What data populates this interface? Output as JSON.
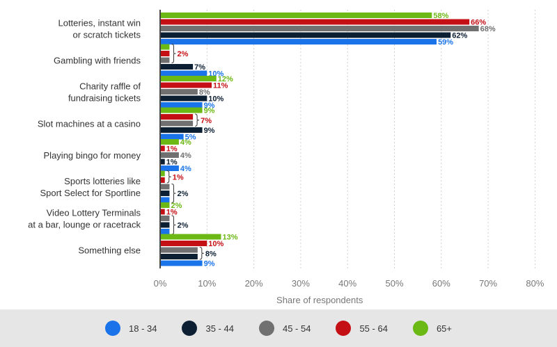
{
  "chart_data": {
    "type": "bar",
    "orientation": "horizontal",
    "categories": [
      [
        "Lotteries, instant win",
        "or scratch tickets"
      ],
      [
        "Gambling with friends"
      ],
      [
        "Charity raffle of",
        "fundraising tickets"
      ],
      [
        "Slot machines at a casino"
      ],
      [
        "Playing bingo for money"
      ],
      [
        "Sports lotteries like",
        "Sport Select for Sportline"
      ],
      [
        "Video Lottery Terminals",
        "at a bar, lounge or racetrack"
      ],
      [
        "Something else"
      ]
    ],
    "series_order_top_to_bottom": [
      "65+",
      "55 - 64",
      "45 - 54",
      "35 - 44",
      "18 - 34"
    ],
    "series": [
      {
        "name": "18 - 34",
        "color": "#1a73e8",
        "values": [
          59,
          10,
          9,
          5,
          4,
          2,
          2,
          9
        ]
      },
      {
        "name": "35 - 44",
        "color": "#0d1f33",
        "values": [
          62,
          7,
          10,
          9,
          1,
          2,
          2,
          8
        ]
      },
      {
        "name": "45 - 54",
        "color": "#707070",
        "values": [
          68,
          2,
          8,
          7,
          4,
          2,
          2,
          8
        ]
      },
      {
        "name": "55 - 64",
        "color": "#c40f15",
        "values": [
          66,
          2,
          11,
          7,
          1,
          1,
          1,
          10
        ]
      },
      {
        "name": "65+",
        "color": "#6cb814",
        "values": [
          58,
          2,
          12,
          9,
          4,
          1,
          2,
          13
        ]
      }
    ],
    "data_labels": [
      [
        {
          "series": "65+",
          "text": "58%"
        },
        {
          "series": "55 - 64",
          "text": "66%"
        },
        {
          "series": "45 - 54",
          "text": "68%"
        },
        {
          "series": "35 - 44",
          "text": "62%"
        },
        {
          "series": "18 - 34",
          "text": "59%"
        }
      ],
      [
        {
          "series": "55 - 64",
          "text": "2%",
          "bracket": [
            "65+",
            "45 - 54"
          ]
        },
        {
          "series": "35 - 44",
          "text": "7%"
        },
        {
          "series": "18 - 34",
          "text": "10%"
        }
      ],
      [
        {
          "series": "65+",
          "text": "12%"
        },
        {
          "series": "55 - 64",
          "text": "11%"
        },
        {
          "series": "45 - 54",
          "text": "8%"
        },
        {
          "series": "35 - 44",
          "text": "10%"
        },
        {
          "series": "18 - 34",
          "text": "9%"
        }
      ],
      [
        {
          "series": "65+",
          "text": "9%"
        },
        {
          "series": "55 - 64",
          "text": "7%",
          "bracket": [
            "55 - 64",
            "45 - 54"
          ]
        },
        {
          "series": "35 - 44",
          "text": "9%"
        },
        {
          "series": "18 - 34",
          "text": "5%"
        }
      ],
      [
        {
          "series": "65+",
          "text": "4%"
        },
        {
          "series": "55 - 64",
          "text": "1%"
        },
        {
          "series": "45 - 54",
          "text": "4%"
        },
        {
          "series": "35 - 44",
          "text": "1%"
        },
        {
          "series": "18 - 34",
          "text": "4%"
        }
      ],
      [
        {
          "series": "55 - 64",
          "text": "1%",
          "bracket": [
            "65+",
            "55 - 64"
          ]
        },
        {
          "series": "35 - 44",
          "text": "2%",
          "bracket": [
            "45 - 54",
            "18 - 34"
          ]
        }
      ],
      [
        {
          "series": "65+",
          "text": "2%"
        },
        {
          "series": "55 - 64",
          "text": "1%"
        },
        {
          "series": "35 - 44",
          "text": "2%",
          "bracket": [
            "45 - 54",
            "18 - 34"
          ]
        }
      ],
      [
        {
          "series": "65+",
          "text": "13%"
        },
        {
          "series": "55 - 64",
          "text": "10%"
        },
        {
          "series": "35 - 44",
          "text": "8%",
          "bracket": [
            "45 - 54",
            "35 - 44"
          ]
        },
        {
          "series": "18 - 34",
          "text": "9%"
        }
      ]
    ],
    "x_ticks": [
      "0%",
      "10%",
      "20%",
      "30%",
      "40%",
      "50%",
      "60%",
      "70%",
      "80%"
    ],
    "xlim": [
      0,
      80
    ],
    "xlabel": "Share of respondents",
    "grid": true,
    "legend_position": "bottom"
  }
}
